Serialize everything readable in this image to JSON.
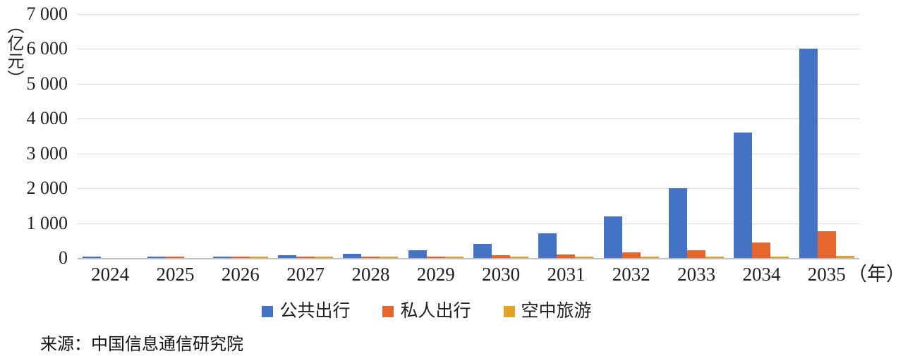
{
  "chart_data": {
    "type": "bar",
    "title": "",
    "y_axis_unit_label": "（亿元）",
    "x_axis_unit_label": "（年）",
    "categories": [
      "2024",
      "2025",
      "2026",
      "2027",
      "2028",
      "2029",
      "2030",
      "2031",
      "2032",
      "2033",
      "2034",
      "2035"
    ],
    "series": [
      {
        "key": "public-travel",
        "name": "公共出行",
        "color": "#4472c4",
        "values": [
          5,
          20,
          50,
          80,
          130,
          230,
          400,
          700,
          1200,
          2000,
          3600,
          6000
        ]
      },
      {
        "key": "private-travel",
        "name": "私人出行",
        "color": "#e5672d",
        "values": [
          0,
          5,
          10,
          15,
          25,
          40,
          80,
          100,
          160,
          230,
          440,
          770
        ]
      },
      {
        "key": "air-tourism",
        "name": "空中旅游",
        "color": "#e0a327",
        "values": [
          0,
          0,
          3,
          5,
          8,
          10,
          20,
          25,
          30,
          35,
          40,
          55
        ]
      }
    ],
    "y_ticks": [
      "0",
      "1 000",
      "2 000",
      "3 000",
      "4 000",
      "5 000",
      "6 000",
      "7 000"
    ],
    "y_tick_values": [
      0,
      1000,
      2000,
      3000,
      4000,
      5000,
      6000,
      7000
    ],
    "ylim": [
      0,
      7000
    ],
    "grid": "horizontal",
    "legend_position": "bottom",
    "colors": {
      "gridline": "#d9d9d9",
      "baseline": "#bfbfbf"
    }
  },
  "source": {
    "text": "来源：中国信息通信研究院"
  }
}
